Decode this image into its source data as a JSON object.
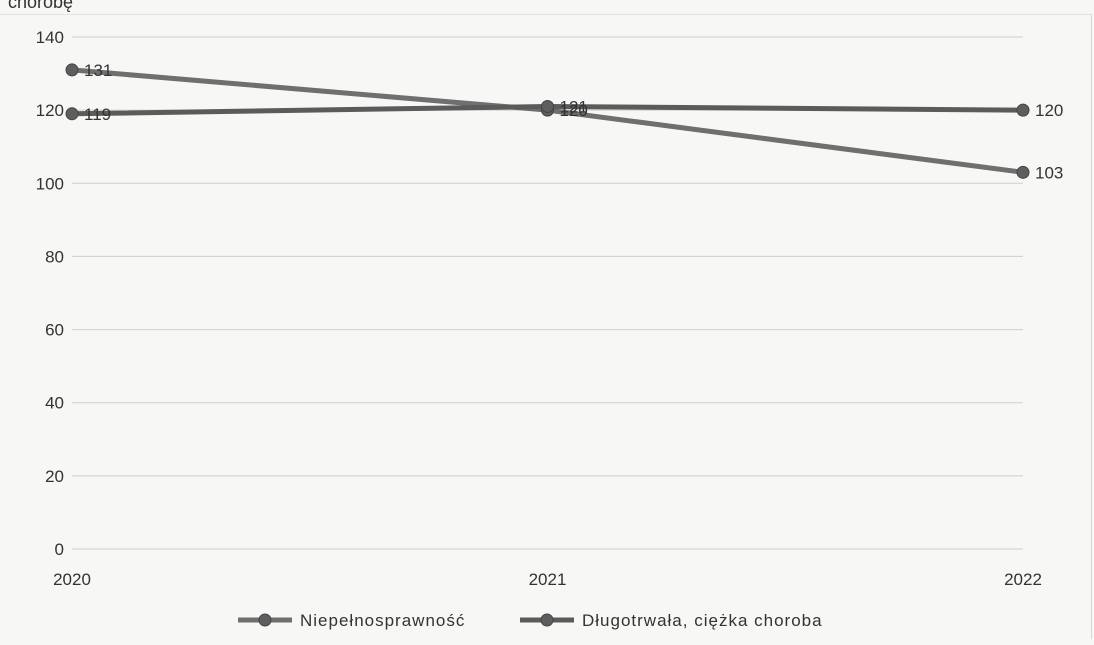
{
  "caption": "chorobę",
  "chart_data": {
    "type": "line",
    "x": [
      "2020",
      "2021",
      "2022"
    ],
    "ylim": [
      0,
      140
    ],
    "yticks": [
      0,
      20,
      40,
      60,
      80,
      100,
      120,
      140
    ],
    "grid": true,
    "legend_position": "bottom",
    "series": [
      {
        "name": "Niepełnosprawność",
        "values": [
          131,
          120,
          103
        ],
        "labels": [
          "131",
          "120",
          "103"
        ],
        "color": "#6f6f6f"
      },
      {
        "name": "Długotrwała, ciężka choroba",
        "values": [
          119,
          121,
          120
        ],
        "labels": [
          "119",
          "121",
          "120"
        ],
        "color": "#5b5b5b"
      }
    ]
  }
}
